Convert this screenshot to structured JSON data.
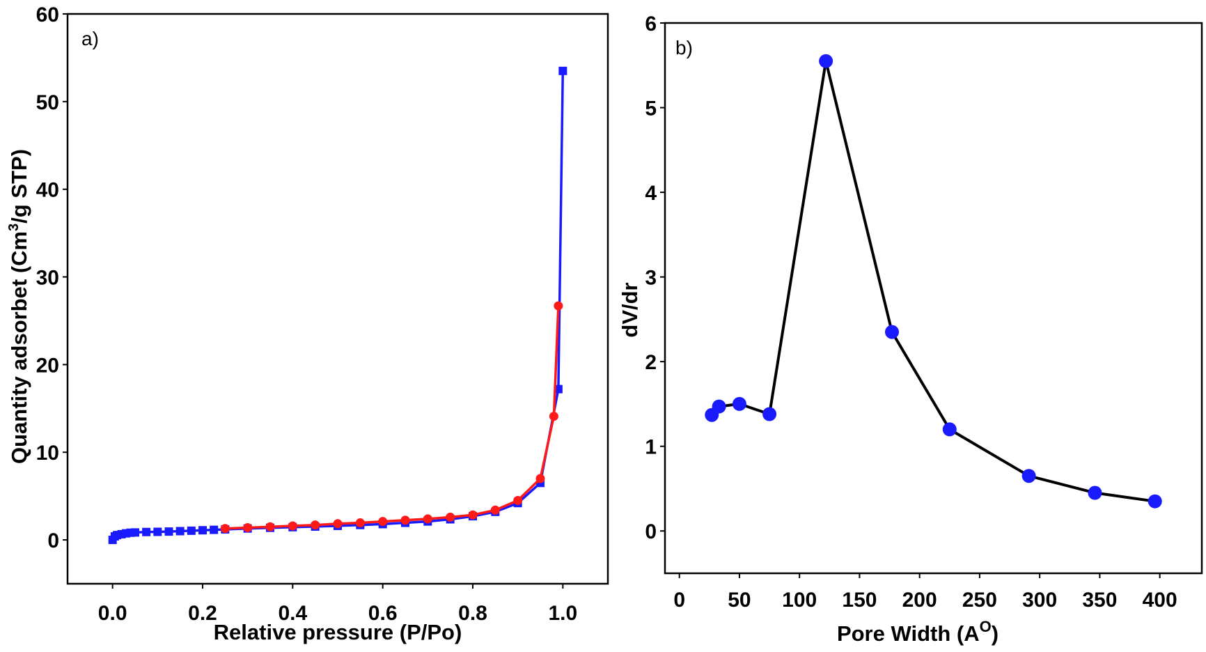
{
  "chart_data": [
    {
      "type": "line",
      "panel_label": "a)",
      "xlabel": "Relative pressure (P/Po)",
      "ylabel_parts": [
        "Quantity adsorbet (Cm",
        "3",
        "/g STP)"
      ],
      "xlim": [
        -0.1,
        1.1
      ],
      "ylim": [
        -5,
        60
      ],
      "xticks": [
        0.0,
        0.2,
        0.4,
        0.6,
        0.8,
        1.0
      ],
      "xtick_labels": [
        "0.0",
        "0.2",
        "0.4",
        "0.6",
        "0.8",
        "1.0"
      ],
      "yticks": [
        0,
        10,
        20,
        30,
        40,
        50,
        60
      ],
      "ytick_labels": [
        "0",
        "10",
        "20",
        "30",
        "40",
        "50",
        "60"
      ],
      "grid": false,
      "series": [
        {
          "marker": "square",
          "color": "#1a1aff",
          "x": [
            0.0,
            0.005,
            0.01,
            0.02,
            0.03,
            0.04,
            0.05,
            0.075,
            0.1,
            0.125,
            0.15,
            0.175,
            0.2,
            0.225,
            0.25,
            0.3,
            0.35,
            0.4,
            0.45,
            0.5,
            0.55,
            0.6,
            0.65,
            0.7,
            0.75,
            0.8,
            0.85,
            0.9,
            0.95,
            0.99,
            1.0
          ],
          "y": [
            0.0,
            0.4,
            0.55,
            0.65,
            0.75,
            0.82,
            0.85,
            0.9,
            0.92,
            0.95,
            1.0,
            1.05,
            1.1,
            1.15,
            1.2,
            1.3,
            1.38,
            1.45,
            1.52,
            1.6,
            1.7,
            1.8,
            1.95,
            2.1,
            2.35,
            2.7,
            3.2,
            4.2,
            6.5,
            17.2,
            53.5
          ]
        },
        {
          "marker": "circle",
          "color": "#ff1a1a",
          "x": [
            0.25,
            0.3,
            0.35,
            0.4,
            0.45,
            0.5,
            0.55,
            0.6,
            0.65,
            0.7,
            0.75,
            0.8,
            0.85,
            0.9,
            0.95,
            0.98,
            0.99
          ],
          "y": [
            1.3,
            1.4,
            1.5,
            1.6,
            1.7,
            1.85,
            1.95,
            2.1,
            2.25,
            2.4,
            2.6,
            2.85,
            3.4,
            4.5,
            7.0,
            14.1,
            26.7
          ]
        }
      ]
    },
    {
      "type": "line",
      "panel_label": "b)",
      "xlabel_main": "Pore Width (A",
      "xlabel_sup": "O",
      "xlabel_end": ")",
      "ylabel": "dV/dr",
      "xlim": [
        -12,
        435
      ],
      "ylim": [
        -0.5,
        6
      ],
      "xticks": [
        0,
        50,
        100,
        150,
        200,
        250,
        300,
        350,
        400
      ],
      "xtick_labels": [
        "0",
        "50",
        "100",
        "150",
        "200",
        "250",
        "300",
        "350",
        "400"
      ],
      "yticks": [
        0,
        1,
        2,
        3,
        4,
        5,
        6
      ],
      "ytick_labels": [
        "0",
        "1",
        "2",
        "3",
        "4",
        "5",
        "6"
      ],
      "grid": false,
      "series": [
        {
          "marker": "circle",
          "line_color": "#000000",
          "marker_color": "#1a1aff",
          "x": [
            27,
            33,
            50,
            75,
            122,
            177,
            225,
            291,
            346,
            396
          ],
          "y": [
            1.37,
            1.47,
            1.5,
            1.38,
            5.55,
            2.35,
            1.2,
            0.65,
            0.45,
            0.35
          ]
        }
      ]
    }
  ]
}
